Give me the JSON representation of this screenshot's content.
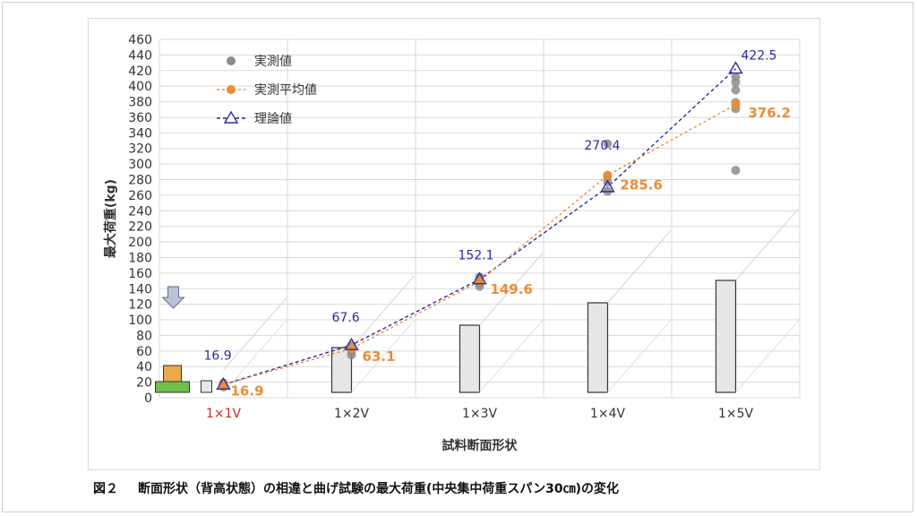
{
  "caption": {
    "figure_number": "図２",
    "text": "断面形状（背高状態）の相違と曲げ試験の最大荷重(中央集中荷重スパン30㎝)の変化"
  },
  "colors": {
    "measured": "#8c8c8c",
    "average": "#ed8b36",
    "theory": "#2b2b9c",
    "first_category": "#d02a2a",
    "grid": "#d9d9d9",
    "box_fill": "#e6e6e6",
    "box_top": "#e8a94f",
    "box_bottom": "#6fbf4b",
    "arrow": "#b8c4d8"
  },
  "chart_data": {
    "type": "scatter",
    "xlabel": "試料断面形状",
    "ylabel": "最大荷重(kg)",
    "ylim": [
      0,
      460
    ],
    "y_ticks": [
      0,
      20,
      40,
      60,
      80,
      100,
      120,
      140,
      160,
      180,
      200,
      220,
      240,
      260,
      280,
      300,
      320,
      340,
      360,
      380,
      400,
      420,
      440,
      460
    ],
    "grid": true,
    "legend_position": "top-left",
    "categories": [
      "1×1V",
      "1×2V",
      "1×3V",
      "1×4V",
      "1×5V"
    ],
    "section_cross_section_heights": [
      1,
      2,
      3,
      4,
      5
    ],
    "legend": [
      {
        "key": "measured",
        "label": "実測値"
      },
      {
        "key": "average",
        "label": "実測平均値"
      },
      {
        "key": "theory",
        "label": "理論値"
      }
    ],
    "series": [
      {
        "name": "実測値",
        "points": [
          {
            "x": 0,
            "y": 14
          },
          {
            "x": 0,
            "y": 16
          },
          {
            "x": 0,
            "y": 18
          },
          {
            "x": 0,
            "y": 19
          },
          {
            "x": 1,
            "y": 55
          },
          {
            "x": 1,
            "y": 60
          },
          {
            "x": 1,
            "y": 64
          },
          {
            "x": 1,
            "y": 67
          },
          {
            "x": 2,
            "y": 143
          },
          {
            "x": 2,
            "y": 147
          },
          {
            "x": 2,
            "y": 151
          },
          {
            "x": 2,
            "y": 155
          },
          {
            "x": 3,
            "y": 265
          },
          {
            "x": 3,
            "y": 277
          },
          {
            "x": 3,
            "y": 284
          },
          {
            "x": 3,
            "y": 326
          },
          {
            "x": 4,
            "y": 292
          },
          {
            "x": 4,
            "y": 371
          },
          {
            "x": 4,
            "y": 379
          },
          {
            "x": 4,
            "y": 395
          },
          {
            "x": 4,
            "y": 405
          },
          {
            "x": 4,
            "y": 412
          }
        ]
      },
      {
        "name": "実測平均値",
        "values": [
          16.9,
          63.1,
          149.6,
          285.6,
          376.2
        ],
        "labels": [
          "16.9",
          "63.1",
          "149.6",
          "285.6",
          "376.2"
        ]
      },
      {
        "name": "理論値",
        "values": [
          16.9,
          67.6,
          152.1,
          270.4,
          422.5
        ],
        "labels": [
          "16.9",
          "67.6",
          "152.1",
          "270.4",
          "422.5"
        ]
      }
    ]
  }
}
